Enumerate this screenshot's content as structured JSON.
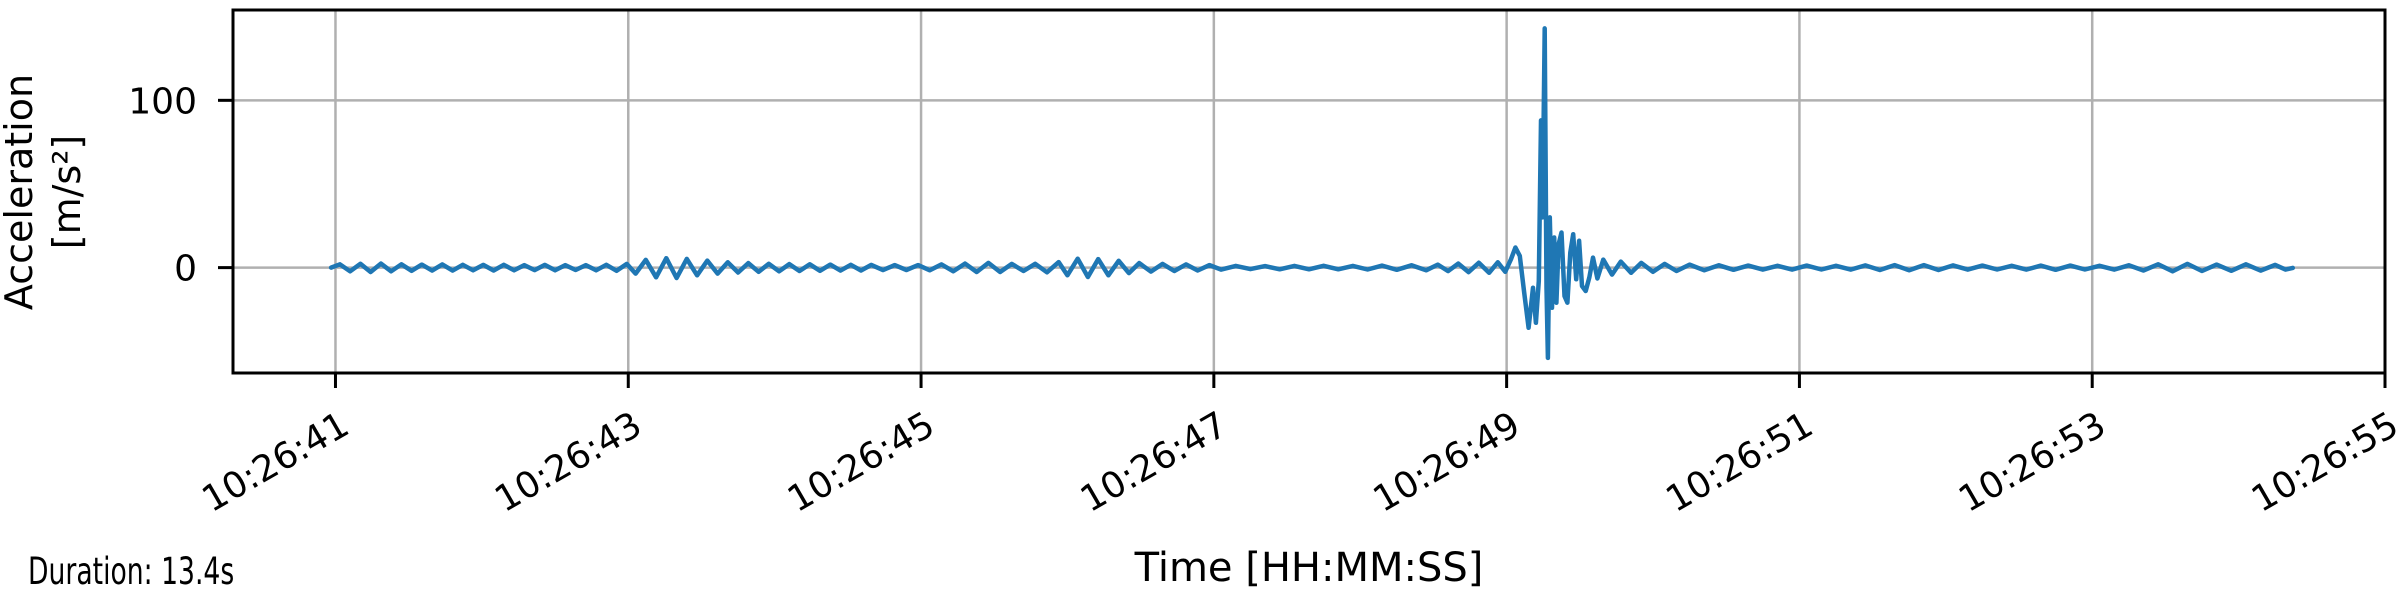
{
  "chart_data": {
    "type": "line",
    "title": "",
    "xlabel": "Time [HH:MM:SS]",
    "ylabel_line1": "Acceleration",
    "ylabel_line2": "[m/s²]",
    "grid": true,
    "legend": false,
    "line_color": "#1f77b4",
    "grid_color": "#b0b0b0",
    "spine_color": "#000000",
    "xlim_seconds_after_10_26_00": [
      40.3,
      55.0
    ],
    "ylim": [
      -63,
      154
    ],
    "x_ticks": [
      {
        "label": "10:26:41",
        "t": 41
      },
      {
        "label": "10:26:43",
        "t": 43
      },
      {
        "label": "10:26:45",
        "t": 45
      },
      {
        "label": "10:26:47",
        "t": 47
      },
      {
        "label": "10:26:49",
        "t": 49
      },
      {
        "label": "10:26:51",
        "t": 51
      },
      {
        "label": "10:26:53",
        "t": 53
      },
      {
        "label": "10:26:55",
        "t": 55
      }
    ],
    "y_ticks": [
      {
        "label": "100",
        "value": 100
      },
      {
        "label": "0",
        "value": 0
      }
    ],
    "annotations": {
      "duration": "Duration: 13.4s"
    },
    "notable": {
      "event_time_label": "10:26:49",
      "event_peak_value": 143,
      "event_trough_value": -54
    },
    "series": [
      {
        "name": "acceleration",
        "x_unit": "seconds after 10:26:00",
        "y_unit": "m/s²",
        "points": [
          [
            40.97,
            0
          ],
          [
            41.03,
            2.0
          ],
          [
            41.1,
            -2.2
          ],
          [
            41.17,
            2.3
          ],
          [
            41.24,
            -2.6
          ],
          [
            41.31,
            2.4
          ],
          [
            41.38,
            -2.2
          ],
          [
            41.45,
            2.0
          ],
          [
            41.52,
            -1.9
          ],
          [
            41.59,
            1.8
          ],
          [
            41.66,
            -1.8
          ],
          [
            41.73,
            1.9
          ],
          [
            41.8,
            -1.8
          ],
          [
            41.87,
            1.7
          ],
          [
            41.94,
            -1.6
          ],
          [
            42.01,
            1.6
          ],
          [
            42.08,
            -1.7
          ],
          [
            42.15,
            1.7
          ],
          [
            42.22,
            -1.6
          ],
          [
            42.29,
            1.5
          ],
          [
            42.36,
            -1.5
          ],
          [
            42.43,
            1.6
          ],
          [
            42.5,
            -1.6
          ],
          [
            42.57,
            1.5
          ],
          [
            42.64,
            -1.4
          ],
          [
            42.71,
            1.5
          ],
          [
            42.78,
            -1.6
          ],
          [
            42.85,
            1.7
          ],
          [
            42.92,
            -1.9
          ],
          [
            42.99,
            2.2
          ],
          [
            43.05,
            -3.6
          ],
          [
            43.12,
            4.6
          ],
          [
            43.19,
            -5.8
          ],
          [
            43.26,
            5.6
          ],
          [
            43.33,
            -6.2
          ],
          [
            43.4,
            5.2
          ],
          [
            43.47,
            -4.6
          ],
          [
            43.54,
            4.2
          ],
          [
            43.61,
            -3.6
          ],
          [
            43.68,
            3.2
          ],
          [
            43.75,
            -2.9
          ],
          [
            43.82,
            2.7
          ],
          [
            43.89,
            -2.5
          ],
          [
            43.96,
            2.3
          ],
          [
            44.03,
            -2.2
          ],
          [
            44.1,
            2.1
          ],
          [
            44.17,
            -2.0
          ],
          [
            44.24,
            2.0
          ],
          [
            44.31,
            -1.9
          ],
          [
            44.38,
            1.8
          ],
          [
            44.45,
            -1.8
          ],
          [
            44.52,
            1.7
          ],
          [
            44.59,
            -1.7
          ],
          [
            44.66,
            1.6
          ],
          [
            44.74,
            -1.5
          ],
          [
            44.82,
            1.5
          ],
          [
            44.9,
            -1.4
          ],
          [
            44.98,
            1.5
          ],
          [
            45.06,
            -1.6
          ],
          [
            45.14,
            1.9
          ],
          [
            45.22,
            -2.2
          ],
          [
            45.3,
            2.4
          ],
          [
            45.38,
            -2.6
          ],
          [
            45.46,
            2.8
          ],
          [
            45.54,
            -2.6
          ],
          [
            45.62,
            2.2
          ],
          [
            45.7,
            -2.0
          ],
          [
            45.78,
            2.3
          ],
          [
            45.86,
            -2.8
          ],
          [
            45.94,
            3.3
          ],
          [
            46.0,
            -4.6
          ],
          [
            46.07,
            5.3
          ],
          [
            46.14,
            -5.6
          ],
          [
            46.21,
            5.1
          ],
          [
            46.28,
            -4.6
          ],
          [
            46.35,
            4.1
          ],
          [
            46.42,
            -3.3
          ],
          [
            46.49,
            2.7
          ],
          [
            46.57,
            -2.4
          ],
          [
            46.65,
            2.2
          ],
          [
            46.73,
            -2.0
          ],
          [
            46.81,
            1.9
          ],
          [
            46.89,
            -1.7
          ],
          [
            46.97,
            1.5
          ],
          [
            47.05,
            -1.2
          ],
          [
            47.15,
            1.0
          ],
          [
            47.25,
            -0.9
          ],
          [
            47.35,
            0.9
          ],
          [
            47.45,
            -1.0
          ],
          [
            47.55,
            1.0
          ],
          [
            47.65,
            -1.0
          ],
          [
            47.75,
            1.1
          ],
          [
            47.85,
            -1.0
          ],
          [
            47.95,
            1.0
          ],
          [
            48.05,
            -1.1
          ],
          [
            48.15,
            1.2
          ],
          [
            48.25,
            -1.3
          ],
          [
            48.35,
            1.4
          ],
          [
            48.45,
            -1.6
          ],
          [
            48.53,
            1.8
          ],
          [
            48.6,
            -2.1
          ],
          [
            48.67,
            2.4
          ],
          [
            48.74,
            -2.7
          ],
          [
            48.81,
            2.9
          ],
          [
            48.88,
            -3.1
          ],
          [
            48.94,
            3.2
          ],
          [
            48.99,
            -2.5
          ],
          [
            49.03,
            5
          ],
          [
            49.06,
            12
          ],
          [
            49.09,
            7
          ],
          [
            49.12,
            -15
          ],
          [
            49.15,
            -36
          ],
          [
            49.18,
            -12
          ],
          [
            49.2,
            -33
          ],
          [
            49.22,
            -8
          ],
          [
            49.235,
            88
          ],
          [
            49.245,
            30
          ],
          [
            49.26,
            143
          ],
          [
            49.272,
            -12
          ],
          [
            49.282,
            -54
          ],
          [
            49.295,
            30
          ],
          [
            49.31,
            -24
          ],
          [
            49.325,
            18
          ],
          [
            49.34,
            -21
          ],
          [
            49.355,
            14
          ],
          [
            49.375,
            21
          ],
          [
            49.395,
            -17
          ],
          [
            49.415,
            -21
          ],
          [
            49.435,
            9
          ],
          [
            49.455,
            20
          ],
          [
            49.475,
            -7
          ],
          [
            49.495,
            16
          ],
          [
            49.515,
            -11
          ],
          [
            49.54,
            -14
          ],
          [
            49.565,
            -6
          ],
          [
            49.59,
            6
          ],
          [
            49.62,
            -6.5
          ],
          [
            49.66,
            4.8
          ],
          [
            49.72,
            -4.2
          ],
          [
            49.78,
            3.6
          ],
          [
            49.85,
            -3.1
          ],
          [
            49.92,
            2.8
          ],
          [
            50.0,
            -2.5
          ],
          [
            50.08,
            2.2
          ],
          [
            50.16,
            -2.0
          ],
          [
            50.25,
            1.8
          ],
          [
            50.35,
            -1.6
          ],
          [
            50.45,
            1.4
          ],
          [
            50.55,
            -1.3
          ],
          [
            50.65,
            1.2
          ],
          [
            50.75,
            -1.2
          ],
          [
            50.85,
            1.1
          ],
          [
            50.95,
            -1.2
          ],
          [
            51.05,
            1.2
          ],
          [
            51.15,
            -1.1
          ],
          [
            51.25,
            1.1
          ],
          [
            51.35,
            -1.2
          ],
          [
            51.45,
            1.3
          ],
          [
            51.55,
            -1.4
          ],
          [
            51.65,
            1.5
          ],
          [
            51.75,
            -1.6
          ],
          [
            51.85,
            1.5
          ],
          [
            51.95,
            -1.4
          ],
          [
            52.05,
            1.3
          ],
          [
            52.15,
            -1.2
          ],
          [
            52.25,
            1.2
          ],
          [
            52.35,
            -1.1
          ],
          [
            52.45,
            1.1
          ],
          [
            52.55,
            -1.2
          ],
          [
            52.65,
            1.2
          ],
          [
            52.75,
            -1.3
          ],
          [
            52.85,
            1.2
          ],
          [
            52.95,
            -1.1
          ],
          [
            53.05,
            1.1
          ],
          [
            53.15,
            -1.2
          ],
          [
            53.25,
            1.4
          ],
          [
            53.35,
            -1.7
          ],
          [
            53.45,
            2.0
          ],
          [
            53.55,
            -2.2
          ],
          [
            53.65,
            2.2
          ],
          [
            53.75,
            -2.0
          ],
          [
            53.85,
            1.8
          ],
          [
            53.95,
            -1.9
          ],
          [
            54.05,
            2.0
          ],
          [
            54.15,
            -1.8
          ],
          [
            54.25,
            1.6
          ],
          [
            54.32,
            -1.2
          ],
          [
            54.37,
            -0.2
          ]
        ]
      }
    ]
  }
}
